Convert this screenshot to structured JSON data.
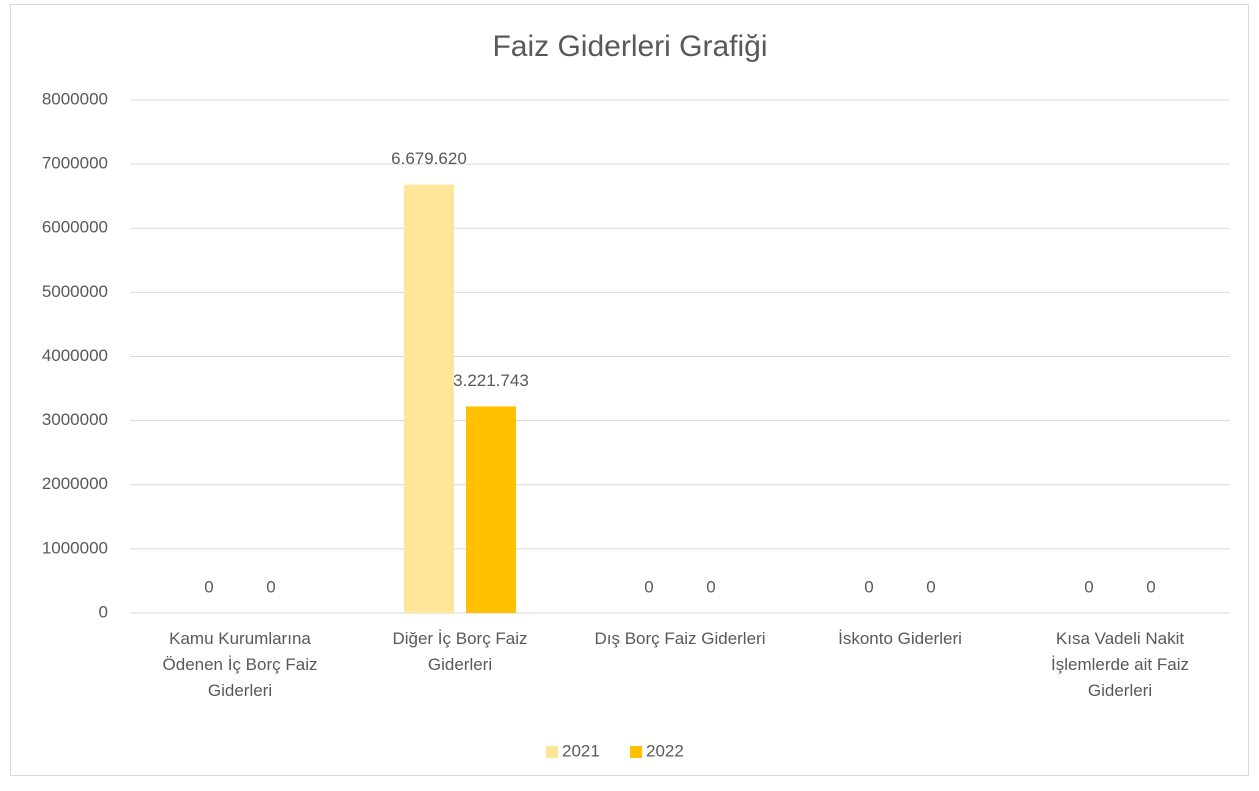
{
  "chart_data": {
    "type": "bar",
    "title": "Faiz Giderleri Grafiği",
    "categories": [
      "Kamu Kurumlarına Ödenen İç Borç Faiz Giderleri",
      "Diğer İç Borç Faiz Giderleri",
      "Dış Borç Faiz Giderleri",
      "İskonto Giderleri",
      "Kısa Vadeli Nakit İşlemlerde ait Faiz Giderleri"
    ],
    "series": [
      {
        "name": "2021",
        "color": "#ffe699",
        "values": [
          0,
          6679620,
          0,
          0,
          0
        ],
        "value_labels": [
          "0",
          "6.679.620",
          "0",
          "0",
          "0"
        ]
      },
      {
        "name": "2022",
        "color": "#ffc000",
        "values": [
          0,
          3221743,
          0,
          0,
          0
        ],
        "value_labels": [
          "0",
          "3.221.743",
          "0",
          "0",
          "0"
        ]
      }
    ],
    "ylim": [
      0,
      8000000
    ],
    "yticks": [
      0,
      1000000,
      2000000,
      3000000,
      4000000,
      5000000,
      6000000,
      7000000,
      8000000
    ],
    "grid": true,
    "legend": "bottom"
  }
}
